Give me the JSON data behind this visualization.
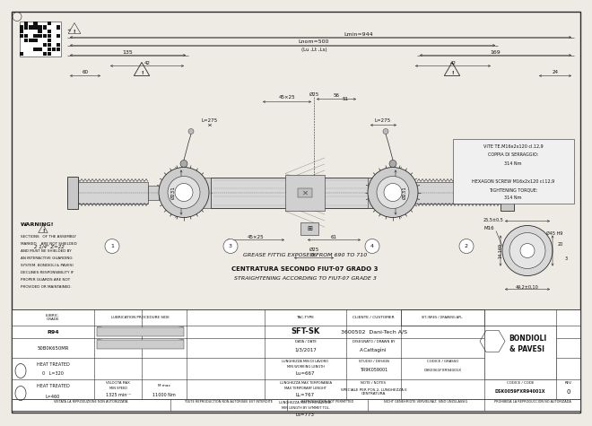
{
  "bg_color": "#eeeae4",
  "line_color": "#2a2a2a",
  "dim_lmin": "Lmin=944",
  "dim_lnom": "Lnom=500",
  "dim_lu_lt_ls": "(Lu ,Lt ,Ls)",
  "dim_195": "135",
  "dim_169": "169",
  "dim_42_left": "42",
  "dim_42_right": "42",
  "dim_60": "60",
  "dim_24": "24",
  "dim_56": "56",
  "dim_phi25_top": "Ø25",
  "dim_45x25_top": "45×25",
  "dim_51": "51",
  "dim_phi231_left": "Ø231",
  "dim_phi231_right": "Ø231",
  "dim_L275_left": "L=275",
  "dim_L275_right": "L=275",
  "dim_45x25_bot": "45×25",
  "dim_61": "61",
  "dim_phi25_bot": "Ø25",
  "dim_66": "66",
  "dim_M16": "M16",
  "dim_25_5": "25,5±0,5",
  "dim_phi45_h9": "Ø45 H9",
  "dim_14_169": "14,169",
  "dim_49_2": "49,2±0,10",
  "dim_20": "20",
  "dim_3": "3",
  "label_2_14_z22": "2 1/4\" Z=22",
  "grease_text": "GREASE FITTIG EXPOSED FROM 690 TO 710",
  "center_text1": "CENTRATURA SECONDO FIUT-07 GRADO 3",
  "center_text2": "STRAIGHTENING ACCORDING TO FIUT-07 GRADE 3",
  "warning_title": "WARNING!",
  "vite_text1": "VITE TE.M16x2x120 cl.12,9",
  "vite_text2": "COPPIA DI SERRAGGIO:",
  "vite_text3": "314 Nm",
  "hex_text1": "HEXAGON SCREW M16x2x120 cl.12,9",
  "hex_text2": "TIGHTENING TORQUE:",
  "hex_text3": "314 Nm",
  "row1_col1": "R94",
  "row2_col1": "50B0K650MR",
  "row3_col1": "HEAT TREATED",
  "row3_val1": "0    L=320",
  "row4_col1": "HEAT TREATED",
  "row4_val1": "L=460",
  "row4_rpm": "1325 min⁻¹",
  "row4_nm": "11000 Nm",
  "tac_type": "SFT-SK",
  "client": "3600502  Dani-Tech A/S",
  "date_label": "DATA / DATE",
  "date": "1/3/2017",
  "drawn_label": "DISEGNATO / DRAWN BY",
  "drawn": "A.Cattagìni",
  "lu_label": "LUNGHEZZA MIN DI LAVORO",
  "lu_label2": "MIN WORKING LENGTH",
  "lu_val": "Lu=667",
  "ll_label": "LUNGHEZZA MAX TEMPORANEA",
  "ll_label2": "MAX TEMPORARY LENGHT",
  "ll_val": "LL=767",
  "ls_label": "LUNGHEZZA MIN DI ROTAZIONE",
  "ls_label2": "MIN LENGTH BY SYMMET TOL.",
  "ls_val": "Ls=773",
  "studio_label": "STUDIO / DESIGN",
  "studio": "TR9K059001",
  "grasso_label": "CODICE / GRASSO",
  "codice_grasso": "09K0061FXR94001X",
  "cone_label": "CODICE / CODE",
  "codice_cone": "DSK0059FXR94001X",
  "rev": "0",
  "rev_label": "REV.",
  "note_label": "NOTE / NOTES",
  "note": "SPECIALE PER POS.2, LUNGHEZZA E\nCENTRATURA",
  "type_label": "TAC-TYPE",
  "client_label": "CLIENTE / CUSTOMER",
  "brand_line1": "BONDIOLI",
  "brand_line2": "& PAVESI",
  "copyright1": "VIETATA LA RIPRODUZIONE NON AUTORIZZATA",
  "copyright2": "TOUTE REPRODUCTION NON AUTORISEE EST INTERDITE",
  "copyright3": "REPRODUCTION NOT PERMITTED",
  "copyright4": "NICHT GENEHMIGTE VERVIELFALT. SIND UNZULASSIG",
  "copyright5": "PROHIBIDA LA REPRODUCCION NO AUTORIZADA",
  "lubric_label": "LUBRIC.",
  "lubric_label2": "GRADE",
  "lub_proc_label": "LUBRICATION PROCEDURE SIDE",
  "vel_label": "VELOCITA MAX",
  "vel_label2": "MIN SPEED",
  "m_label": "M max",
  "node_numbers": [
    "1",
    "2",
    "3",
    "4"
  ]
}
